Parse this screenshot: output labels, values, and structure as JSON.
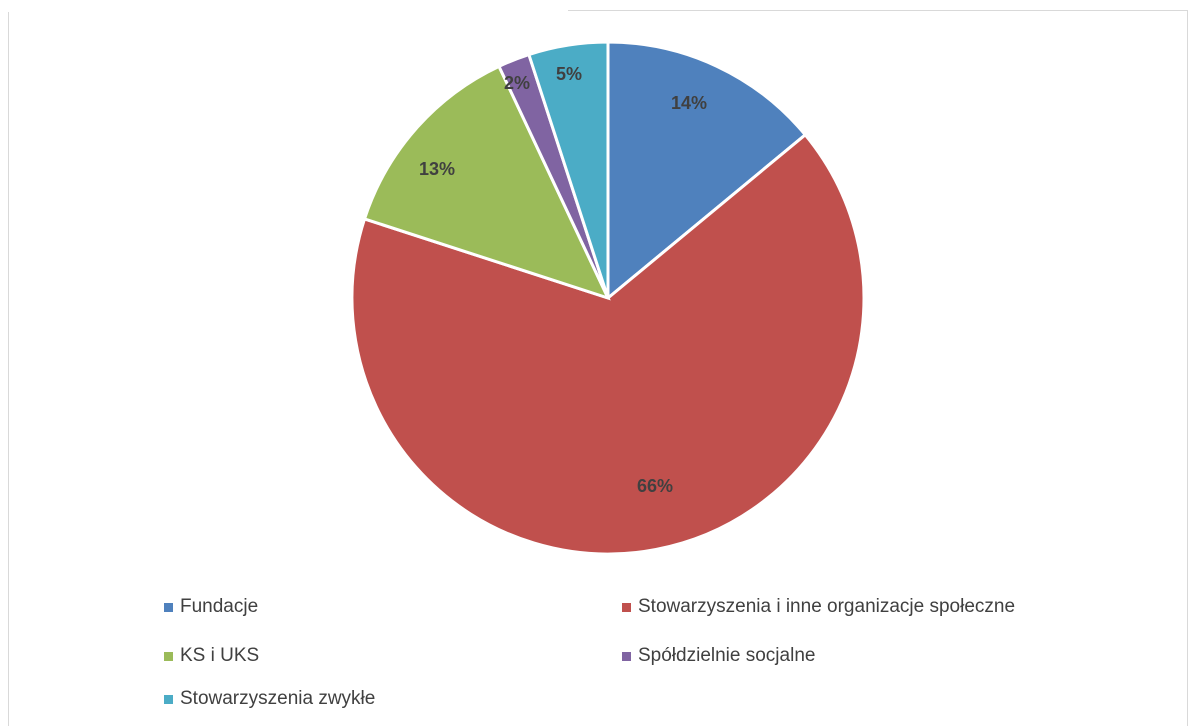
{
  "chart_data": {
    "type": "pie",
    "title": "",
    "slices": [
      {
        "label": "Fundacje",
        "value": 14,
        "display": "14%",
        "color": "#4f81bd"
      },
      {
        "label": "Stowarzyszenia i inne organizacje społeczne",
        "value": 66,
        "display": "66%",
        "color": "#c0504d"
      },
      {
        "label": "KS i UKS",
        "value": 13,
        "display": "13%",
        "color": "#9bbb59"
      },
      {
        "label": "Spółdzielnie socjalne",
        "value": 2,
        "display": "2%",
        "color": "#8064a2"
      },
      {
        "label": "Stowarzyszenia zwykłe",
        "value": 5,
        "display": "5%",
        "color": "#4bacc6"
      }
    ],
    "legend_position": "bottom"
  }
}
